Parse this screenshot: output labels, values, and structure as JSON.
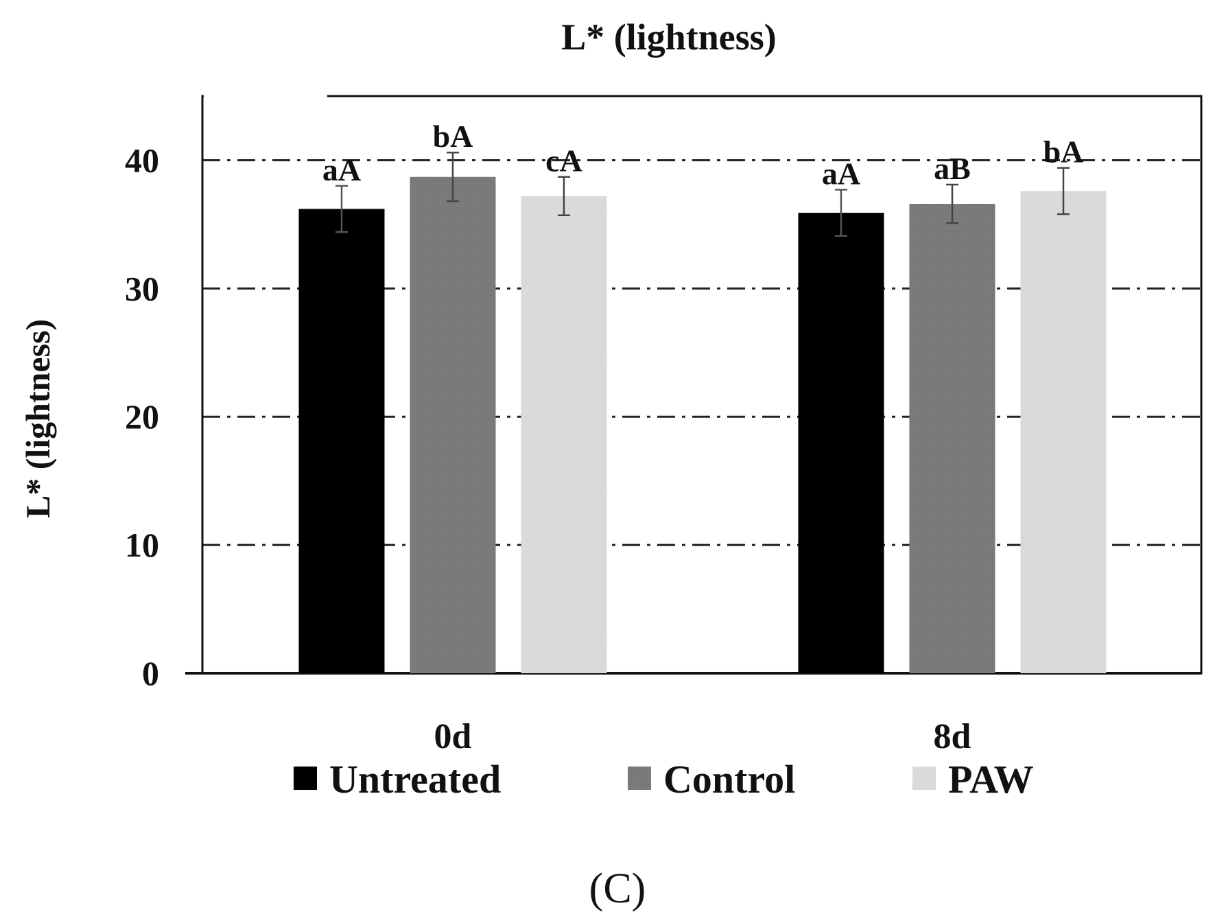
{
  "panel_label": "(C)",
  "chart_data": {
    "type": "bar",
    "title": "L* (lightness)",
    "xlabel": "",
    "ylabel": "L* (lightness)",
    "ylim": [
      0,
      45
    ],
    "yticks": [
      0,
      10,
      20,
      30,
      40
    ],
    "grid": true,
    "legend_position": "bottom",
    "categories": [
      "0d",
      "8d"
    ],
    "series": [
      {
        "name": "Untreated",
        "color": "#000000",
        "values": [
          36.2,
          35.9
        ],
        "errors": [
          1.8,
          1.8
        ],
        "labels": [
          "aA",
          "aA"
        ]
      },
      {
        "name": "Control",
        "color": "#7a7a7a",
        "values": [
          38.7,
          36.6
        ],
        "errors": [
          1.9,
          1.5
        ],
        "labels": [
          "bA",
          "aB"
        ]
      },
      {
        "name": "PAW",
        "color": "#dcdcdc",
        "values": [
          37.2,
          37.6
        ],
        "errors": [
          1.5,
          1.8
        ],
        "labels": [
          "cA",
          "bA"
        ]
      }
    ]
  }
}
